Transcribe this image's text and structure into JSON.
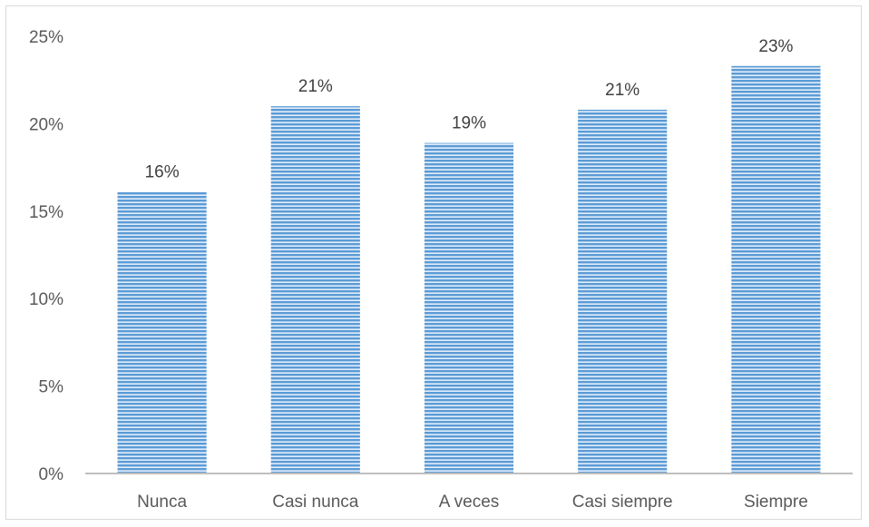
{
  "chart_data": {
    "type": "bar",
    "categories": [
      "Nunca",
      "Casi nunca",
      "A veces",
      "Casi siempre",
      "Siempre"
    ],
    "values": [
      16.1,
      21.0,
      18.9,
      20.8,
      23.3
    ],
    "data_labels": [
      "16%",
      "21%",
      "19%",
      "21%",
      "23%"
    ],
    "ylim": [
      0,
      25
    ],
    "yticks": [
      0,
      5,
      10,
      15,
      20,
      25
    ],
    "ytick_labels": [
      "0%",
      "5%",
      "10%",
      "15%",
      "20%",
      "25%"
    ],
    "grid": false,
    "bar_color": "#5b9bd5",
    "bar_pattern": "horizontal-stripes",
    "title": "",
    "xlabel": "",
    "ylabel": ""
  }
}
